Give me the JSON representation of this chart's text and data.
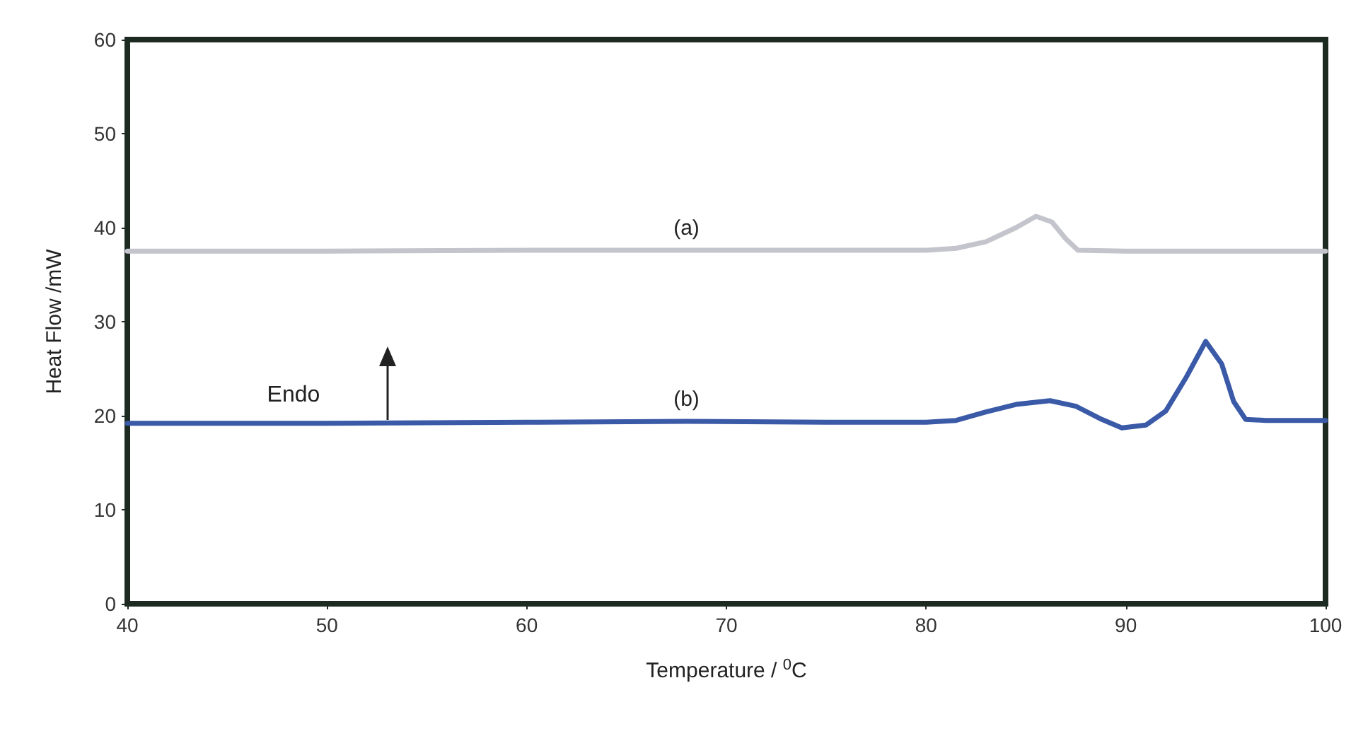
{
  "chart_data": {
    "type": "line",
    "xlabel": "Temperature / $^{0}$C",
    "ylabel": "Heat Flow /mW",
    "xlim": [
      40,
      100
    ],
    "ylim": [
      0,
      60
    ],
    "xticks": [
      40,
      50,
      60,
      70,
      80,
      90,
      100
    ],
    "yticks": [
      0,
      10,
      20,
      30,
      40,
      50,
      60
    ],
    "grid": false,
    "marker": "none",
    "line_style": "solid",
    "annotations": [
      "Endo"
    ],
    "series": [
      {
        "name": "(a)",
        "color": "#c4c4cc",
        "x": [
          40,
          50,
          60,
          68,
          75,
          80,
          81.5,
          83,
          84.5,
          85.5,
          86.3,
          87,
          87.6,
          90,
          95,
          100
        ],
        "values": [
          37.5,
          37.5,
          37.6,
          37.6,
          37.6,
          37.6,
          37.8,
          38.5,
          40.0,
          41.2,
          40.6,
          38.8,
          37.6,
          37.5,
          37.5,
          37.5
        ]
      },
      {
        "name": "(b)",
        "color": "#3a5aa8",
        "x": [
          40,
          50,
          60,
          68,
          75,
          80,
          81.5,
          83,
          84.5,
          86.2,
          87.5,
          88.8,
          89.8,
          91,
          92,
          93,
          94,
          94.8,
          95.4,
          96,
          97,
          100
        ],
        "values": [
          19.2,
          19.2,
          19.3,
          19.4,
          19.3,
          19.3,
          19.5,
          20.4,
          21.2,
          21.6,
          21.0,
          19.6,
          18.7,
          19.0,
          20.5,
          24.0,
          27.9,
          25.5,
          21.5,
          19.6,
          19.5,
          19.5
        ]
      }
    ]
  }
}
